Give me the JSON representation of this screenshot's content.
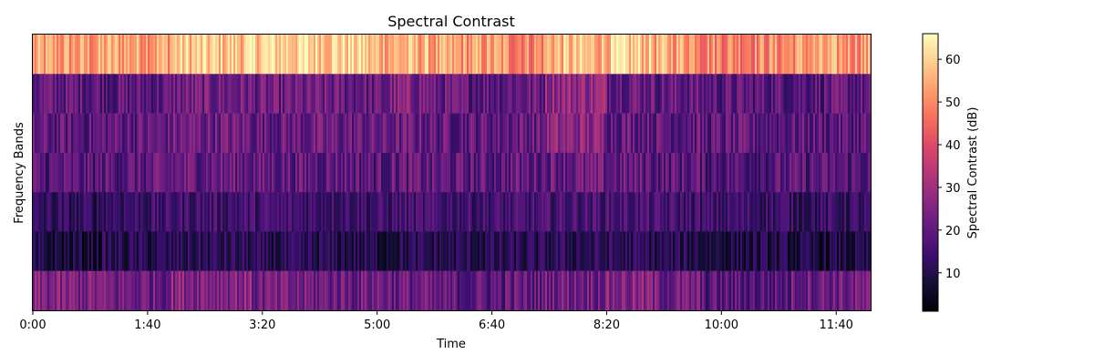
{
  "chart_data": {
    "type": "heatmap",
    "title": "Spectral Contrast",
    "xlabel": "Time",
    "ylabel": "Frequency Bands",
    "colorbar_label": "Spectral Contrast (dB)",
    "colormap": "magma",
    "x_unit": "seconds",
    "xlim_seconds": [
      0,
      730
    ],
    "x_ticks": [
      {
        "seconds": 0,
        "label": "0:00"
      },
      {
        "seconds": 100,
        "label": "1:40"
      },
      {
        "seconds": 200,
        "label": "3:20"
      },
      {
        "seconds": 300,
        "label": "5:00"
      },
      {
        "seconds": 400,
        "label": "6:40"
      },
      {
        "seconds": 500,
        "label": "8:20"
      },
      {
        "seconds": 600,
        "label": "10:00"
      },
      {
        "seconds": 700,
        "label": "11:40"
      }
    ],
    "bands": 7,
    "band_order": "top-to-bottom",
    "colorbar_range": [
      1,
      66
    ],
    "colorbar_ticks": [
      10,
      20,
      30,
      40,
      50,
      60
    ],
    "segment_seconds": [
      0,
      60,
      120,
      190,
      290,
      310,
      345,
      410,
      445,
      500,
      540,
      580,
      660,
      730
    ],
    "band_segment_values": [
      [
        52,
        54,
        58,
        60,
        56,
        55,
        52,
        50,
        56,
        58,
        54,
        50,
        52
      ],
      [
        20,
        19,
        22,
        21,
        20,
        24,
        20,
        21,
        28,
        22,
        20,
        19,
        19
      ],
      [
        19,
        20,
        22,
        21,
        20,
        21,
        20,
        21,
        26,
        21,
        20,
        19,
        19
      ],
      [
        18,
        19,
        21,
        20,
        19,
        20,
        19,
        20,
        21,
        20,
        19,
        18,
        18
      ],
      [
        12,
        14,
        15,
        15,
        14,
        15,
        15,
        15,
        16,
        16,
        15,
        14,
        13
      ],
      [
        8,
        10,
        11,
        10,
        9,
        10,
        10,
        10,
        11,
        11,
        10,
        9,
        8
      ],
      [
        24,
        22,
        26,
        22,
        23,
        21,
        19,
        20,
        23,
        25,
        22,
        18,
        22
      ]
    ]
  }
}
